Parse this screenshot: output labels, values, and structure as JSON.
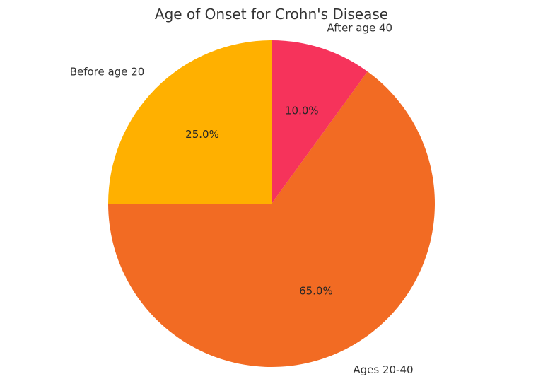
{
  "figure": {
    "background": "#ffffff",
    "text_color": "#333333",
    "pct_text_color": "#262626"
  },
  "chart_data": {
    "type": "pie",
    "title": "Age of Onset for Crohn's Disease",
    "slices": [
      {
        "label": "Before age 20",
        "value": 25.0,
        "pct_label": "25.0%",
        "color": "#FFB000"
      },
      {
        "label": "Ages 20-40",
        "value": 65.0,
        "pct_label": "65.0%",
        "color": "#F26B23"
      },
      {
        "label": "After age 40",
        "value": 10.0,
        "pct_label": "10.0%",
        "color": "#F6335B"
      }
    ],
    "start_angle": 90,
    "direction": "counterclockwise",
    "label_distance": 1.1,
    "pct_distance": 0.6,
    "legend": "none",
    "axes": "none"
  }
}
